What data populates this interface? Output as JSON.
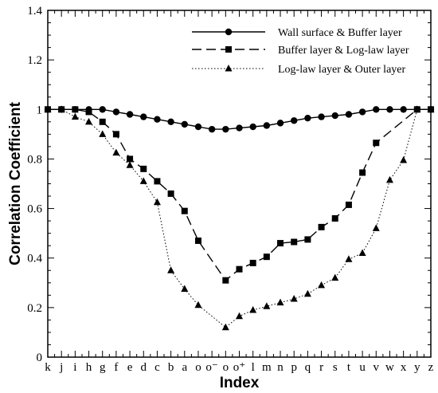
{
  "chart_data": {
    "type": "line",
    "xlabel": "Index",
    "ylabel": "Correlation Coefficient",
    "ylim": [
      0,
      1.4
    ],
    "yticks": [
      "0",
      "0.2",
      "0.4",
      "0.6",
      "0.8",
      "1",
      "1.2",
      "1.4"
    ],
    "categories": [
      "k",
      "j",
      "i",
      "h",
      "g",
      "f",
      "e",
      "d",
      "c",
      "b",
      "a",
      "o",
      "o⁻",
      "o",
      "o⁺",
      "l",
      "m",
      "n",
      "p",
      "q",
      "r",
      "s",
      "t",
      "u",
      "v",
      "w",
      "x",
      "y",
      "z"
    ],
    "legend_position": "top-right",
    "grid": false,
    "series": [
      {
        "name": "Wall surface & Buffer layer",
        "style": "solid",
        "marker": "circle",
        "color": "#000000",
        "values": [
          1.0,
          1.0,
          1.0,
          1.0,
          1.0,
          0.99,
          0.98,
          0.97,
          0.96,
          0.95,
          0.94,
          0.93,
          0.92,
          0.92,
          0.925,
          0.93,
          0.935,
          0.945,
          0.955,
          0.965,
          0.97,
          0.975,
          0.98,
          0.99,
          1.0,
          1.0,
          1.0,
          1.0,
          1.0
        ]
      },
      {
        "name": "Buffer layer & Log-law layer",
        "style": "dashed",
        "marker": "square",
        "color": "#000000",
        "values": [
          1.0,
          1.0,
          1.0,
          0.99,
          0.95,
          0.9,
          0.8,
          0.76,
          0.71,
          0.66,
          0.59,
          0.47,
          null,
          0.31,
          0.355,
          0.38,
          0.405,
          0.46,
          0.465,
          0.475,
          0.525,
          0.56,
          0.615,
          0.745,
          0.865,
          null,
          null,
          1.0,
          1.0
        ]
      },
      {
        "name": "Log-law layer & Outer layer",
        "style": "dotted",
        "marker": "triangle",
        "color": "#000000",
        "values": [
          1.0,
          1.0,
          0.97,
          0.95,
          0.9,
          0.825,
          0.775,
          0.71,
          0.625,
          0.35,
          0.275,
          0.21,
          null,
          0.12,
          0.165,
          0.19,
          0.205,
          0.22,
          0.235,
          0.255,
          0.29,
          0.32,
          0.395,
          0.42,
          0.52,
          0.715,
          0.795,
          1.0,
          1.0
        ]
      }
    ]
  }
}
